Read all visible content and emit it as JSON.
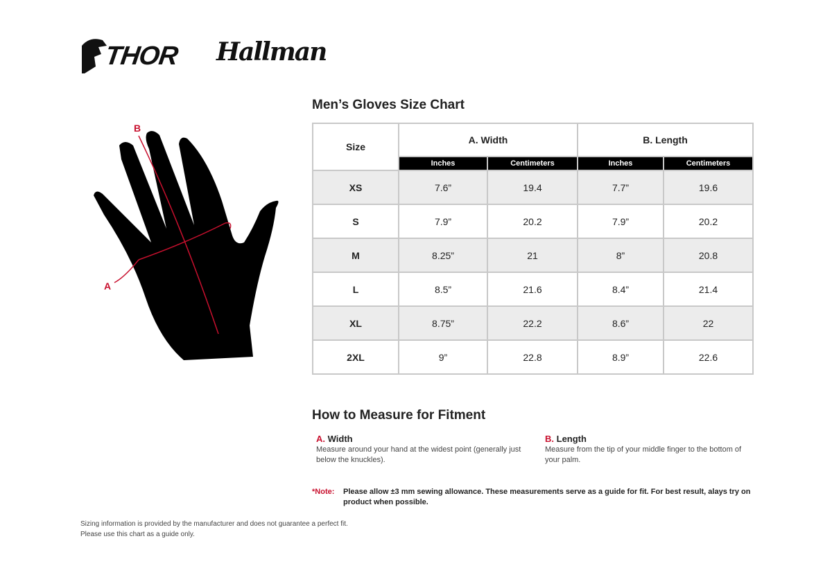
{
  "brands": [
    "THOR",
    "Hallman"
  ],
  "diagram": {
    "label_a": "A",
    "label_b": "B"
  },
  "title": "Men’s Gloves Size Chart",
  "table": {
    "size_header": "Size",
    "groups": [
      "A. Width",
      "B. Length"
    ],
    "units": [
      "Inches",
      "Centimeters",
      "Inches",
      "Centimeters"
    ],
    "rows": [
      [
        "XS",
        "7.6”",
        "19.4",
        "7.7”",
        "19.6"
      ],
      [
        "S",
        "7.9”",
        "20.2",
        "7.9”",
        "20.2"
      ],
      [
        "M",
        "8.25”",
        "21",
        "8”",
        "20.8"
      ],
      [
        "L",
        "8.5”",
        "21.6",
        "8.4”",
        "21.4"
      ],
      [
        "XL",
        "8.75”",
        "22.2",
        "8.6”",
        "22"
      ],
      [
        "2XL",
        "9”",
        "22.8",
        "8.9”",
        "22.6"
      ]
    ]
  },
  "measure": {
    "title": "How to Measure for Fitment",
    "a": {
      "letter": "A.",
      "name": "Width",
      "text": "Measure around your hand at the widest point (generally just below the knuckles)."
    },
    "b": {
      "letter": "B.",
      "name": "Length",
      "text": "Measure from the tip of your middle finger to the bottom of your palm."
    }
  },
  "note": {
    "label": "*Note:",
    "text": "Please allow ±3 mm sewing allowance. These measurements serve as a guide for fit. For best result, alays try on product when possible."
  },
  "footer": [
    "Sizing information is provided by the manufacturer and does not guarantee a perfect fit.",
    "Please use this chart as a guide only."
  ],
  "colors": {
    "accent": "#c8102e",
    "row_alt": "#ececec",
    "header_bar": "#000000"
  }
}
